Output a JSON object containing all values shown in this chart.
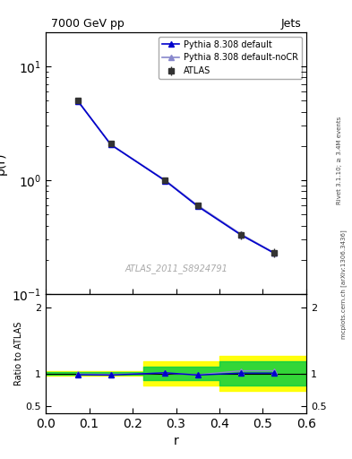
{
  "title_left": "7000 GeV pp",
  "title_right": "Jets",
  "ylabel_main": "ρ(r)",
  "ylabel_ratio": "Ratio to ATLAS",
  "xlabel": "r",
  "watermark": "ATLAS_2011_S8924791",
  "right_label": "mcplots.cern.ch [arXiv:1306.3436]",
  "right_label2": "Rivet 3.1.10; ≥ 3.4M events",
  "x_data": [
    0.075,
    0.15,
    0.275,
    0.35,
    0.45,
    0.525
  ],
  "atlas_y": [
    5.0,
    2.1,
    1.0,
    0.6,
    0.33,
    0.23
  ],
  "atlas_yerr": [
    0.15,
    0.06,
    0.03,
    0.04,
    0.025,
    0.02
  ],
  "py_default_y": [
    4.9,
    2.05,
    0.99,
    0.59,
    0.33,
    0.23
  ],
  "py_noCR_y": [
    4.92,
    2.06,
    1.0,
    0.6,
    0.335,
    0.232
  ],
  "ratio_py_default": [
    0.98,
    0.975,
    1.01,
    0.975,
    1.005,
    1.005
  ],
  "ratio_py_noCR": [
    0.99,
    0.985,
    1.005,
    0.98,
    1.04,
    1.04
  ],
  "band_x_edges": [
    0.0,
    0.15,
    0.225,
    0.325,
    0.4,
    0.6
  ],
  "band_yellow_low": [
    0.97,
    0.97,
    0.82,
    0.82,
    0.73,
    0.73
  ],
  "band_yellow_high": [
    1.03,
    1.03,
    1.18,
    1.18,
    1.27,
    1.27
  ],
  "band_green_low": [
    0.98,
    0.98,
    0.9,
    0.9,
    0.82,
    0.82
  ],
  "band_green_high": [
    1.02,
    1.02,
    1.1,
    1.1,
    1.18,
    1.18
  ],
  "color_atlas": "#333333",
  "color_py_default": "#0000cc",
  "color_py_noCR": "#8888cc",
  "color_yellow": "#ffff00",
  "color_green": "#00cc44",
  "xlim": [
    0.0,
    0.6
  ],
  "ylim_main_log": [
    0.1,
    20.0
  ],
  "ylim_ratio": [
    0.4,
    2.2
  ]
}
